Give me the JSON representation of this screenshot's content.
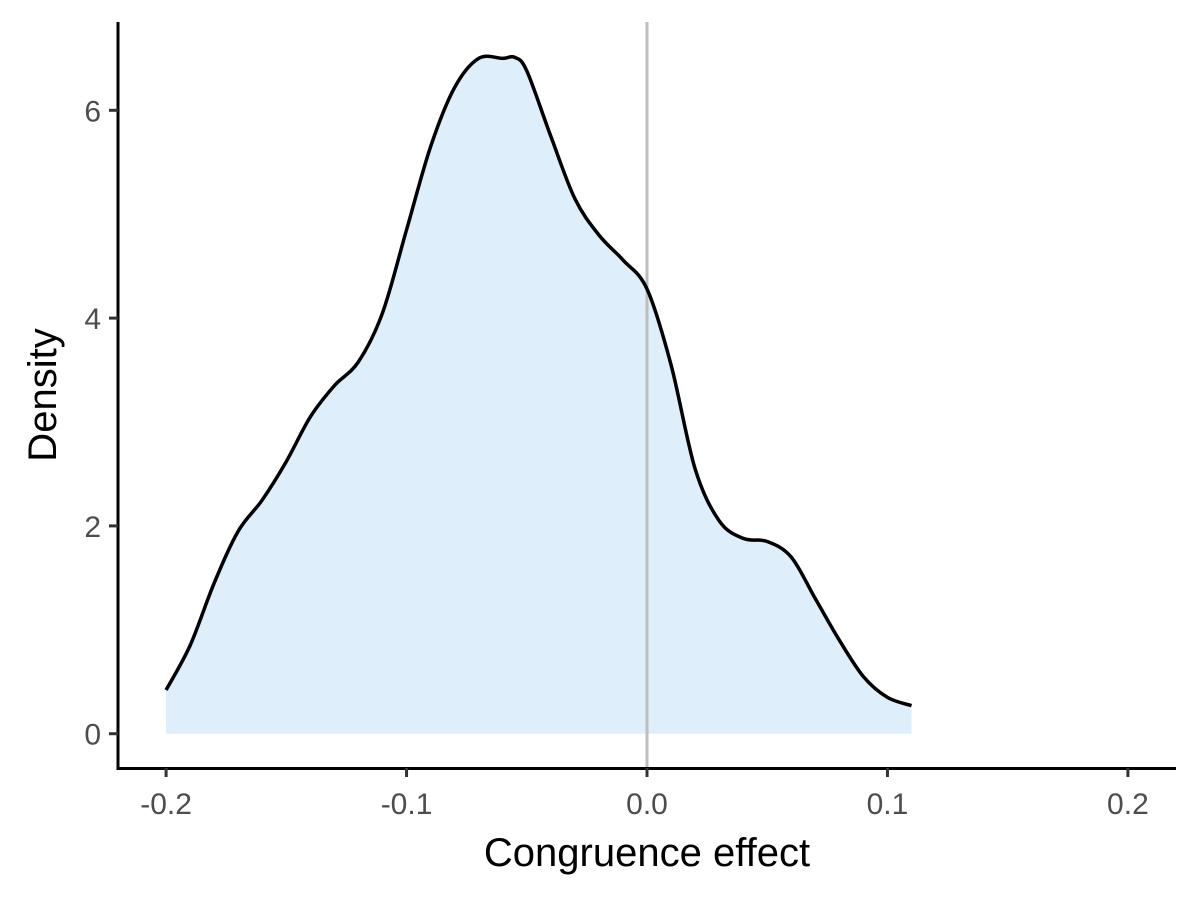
{
  "chart_data": {
    "type": "area",
    "title": "",
    "xlabel": "Congruence effect",
    "ylabel": "Density",
    "xlim": [
      -0.22,
      0.22
    ],
    "ylim": [
      -0.33,
      6.85
    ],
    "x_ticks": [
      -0.2,
      -0.1,
      0.0,
      0.1,
      0.2
    ],
    "x_tick_labels": [
      "-0.2",
      "-0.1",
      "0.0",
      "0.1",
      "0.2"
    ],
    "y_ticks": [
      0,
      2,
      4,
      6
    ],
    "y_tick_labels": [
      "0",
      "2",
      "4",
      "6"
    ],
    "grid": false,
    "legend": "none",
    "reference_line": {
      "x": 0.0,
      "color": "#bebebe"
    },
    "fill_color": "#deeffb",
    "line_color": "#000000",
    "series": [
      {
        "x": [
          -0.2,
          -0.19,
          -0.18,
          -0.17,
          -0.16,
          -0.15,
          -0.14,
          -0.13,
          -0.12,
          -0.11,
          -0.1,
          -0.09,
          -0.08,
          -0.07,
          -0.06,
          -0.055,
          -0.05,
          -0.04,
          -0.03,
          -0.02,
          -0.01,
          0.0,
          0.01,
          0.02,
          0.03,
          0.04,
          0.05,
          0.06,
          0.07,
          0.08,
          0.09,
          0.1,
          0.11
        ],
        "values": [
          0.42,
          0.85,
          1.45,
          1.95,
          2.25,
          2.62,
          3.05,
          3.35,
          3.58,
          4.05,
          4.85,
          5.65,
          6.22,
          6.5,
          6.5,
          6.51,
          6.38,
          5.75,
          5.15,
          4.8,
          4.56,
          4.28,
          3.55,
          2.55,
          2.05,
          1.88,
          1.85,
          1.7,
          1.3,
          0.9,
          0.55,
          0.35,
          0.27
        ]
      }
    ]
  }
}
